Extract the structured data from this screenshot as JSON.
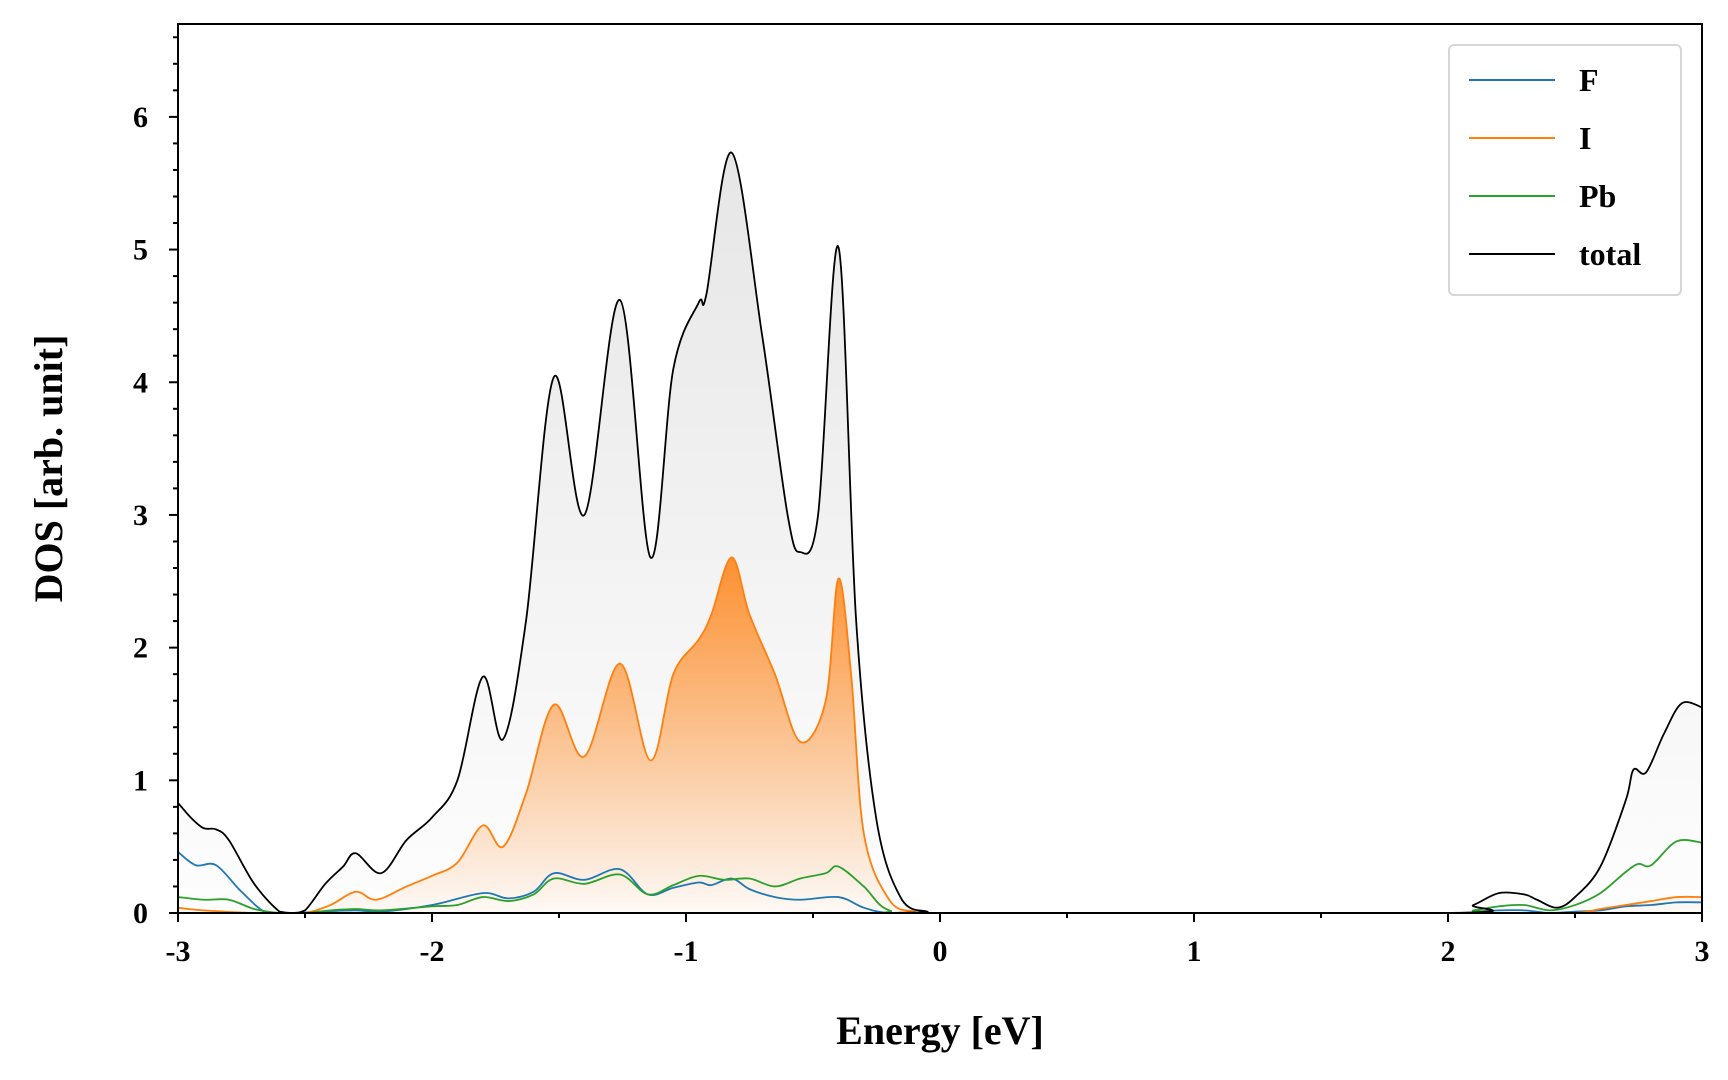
{
  "chart_data": {
    "type": "line",
    "xlabel": "Energy [eV]",
    "ylabel": "DOS [arb. unit]",
    "xlim": [
      -3,
      3
    ],
    "ylim": [
      0,
      6.7
    ],
    "xticks": [
      -3,
      -2,
      -1,
      0,
      1,
      2,
      3
    ],
    "xtick_labels": [
      "-3",
      "-2",
      "-1",
      "0",
      "1",
      "2",
      "3"
    ],
    "yticks": [
      0,
      1,
      2,
      3,
      4,
      5,
      6
    ],
    "ytick_labels": [
      "0",
      "1",
      "2",
      "3",
      "4",
      "5",
      "6"
    ],
    "grid": false,
    "legend_position": "top-right",
    "series": [
      {
        "name": "F",
        "color": "#1f77b4",
        "filled": false,
        "x": [
          -3.0,
          -2.93,
          -2.85,
          -2.75,
          -2.65,
          -2.55,
          -2.45,
          -2.3,
          -2.2,
          -2.0,
          -1.8,
          -1.7,
          -1.6,
          -1.52,
          -1.4,
          -1.26,
          -1.15,
          -1.05,
          -0.95,
          -0.9,
          -0.82,
          -0.75,
          -0.65,
          -0.55,
          -0.4,
          -0.3,
          -0.2,
          0.0,
          2.0,
          2.1,
          2.2,
          2.3,
          2.4,
          2.5,
          2.6,
          2.7,
          2.8,
          2.9,
          3.0
        ],
        "y": [
          0.46,
          0.36,
          0.36,
          0.16,
          0.0,
          0.0,
          0.01,
          0.02,
          0.01,
          0.06,
          0.15,
          0.11,
          0.16,
          0.3,
          0.25,
          0.33,
          0.14,
          0.19,
          0.23,
          0.21,
          0.26,
          0.18,
          0.12,
          0.1,
          0.12,
          0.04,
          0.0,
          0.0,
          0.0,
          0.01,
          0.02,
          0.02,
          0.0,
          0.01,
          0.02,
          0.05,
          0.06,
          0.08,
          0.08
        ]
      },
      {
        "name": "I",
        "color": "#ff7f0e",
        "filled": true,
        "x": [
          -3.0,
          -2.9,
          -2.7,
          -2.6,
          -2.5,
          -2.4,
          -2.3,
          -2.22,
          -2.1,
          -2.0,
          -1.9,
          -1.8,
          -1.72,
          -1.63,
          -1.52,
          -1.4,
          -1.26,
          -1.14,
          -1.05,
          -0.95,
          -0.9,
          -0.82,
          -0.75,
          -0.65,
          -0.55,
          -0.45,
          -0.4,
          -0.35,
          -0.3,
          -0.2,
          -0.1,
          0.0,
          2.0,
          2.3,
          2.5,
          2.6,
          2.7,
          2.8,
          2.9,
          3.0
        ],
        "y": [
          0.04,
          0.02,
          0.0,
          0.0,
          0.0,
          0.06,
          0.16,
          0.1,
          0.2,
          0.28,
          0.38,
          0.66,
          0.5,
          0.9,
          1.57,
          1.18,
          1.88,
          1.15,
          1.8,
          2.06,
          2.25,
          2.68,
          2.25,
          1.8,
          1.29,
          1.6,
          2.52,
          1.8,
          0.6,
          0.1,
          0.01,
          0.0,
          0.0,
          0.0,
          0.0,
          0.03,
          0.06,
          0.09,
          0.12,
          0.12
        ]
      },
      {
        "name": "Pb",
        "color": "#2ca02c",
        "filled": false,
        "x": [
          -3.0,
          -2.9,
          -2.8,
          -2.7,
          -2.6,
          -2.5,
          -2.4,
          -2.3,
          -2.2,
          -2.0,
          -1.9,
          -1.8,
          -1.7,
          -1.6,
          -1.52,
          -1.4,
          -1.26,
          -1.15,
          -1.05,
          -0.95,
          -0.85,
          -0.75,
          -0.65,
          -0.55,
          -0.45,
          -0.4,
          -0.3,
          -0.2,
          0.0,
          2.0,
          2.1,
          2.2,
          2.3,
          2.4,
          2.5,
          2.6,
          2.7,
          2.75,
          2.8,
          2.9,
          3.0
        ],
        "y": [
          0.12,
          0.1,
          0.1,
          0.03,
          0.0,
          0.0,
          0.02,
          0.03,
          0.02,
          0.05,
          0.06,
          0.12,
          0.09,
          0.14,
          0.26,
          0.22,
          0.29,
          0.14,
          0.21,
          0.28,
          0.25,
          0.26,
          0.2,
          0.26,
          0.3,
          0.35,
          0.2,
          0.02,
          0.0,
          0.0,
          0.02,
          0.05,
          0.06,
          0.02,
          0.06,
          0.15,
          0.31,
          0.37,
          0.36,
          0.54,
          0.53
        ]
      },
      {
        "name": "total",
        "color": "#000000",
        "filled": true,
        "x": [
          -3.0,
          -2.95,
          -2.9,
          -2.85,
          -2.8,
          -2.7,
          -2.6,
          -2.55,
          -2.5,
          -2.42,
          -2.35,
          -2.3,
          -2.2,
          -2.1,
          -2.0,
          -1.9,
          -1.8,
          -1.72,
          -1.63,
          -1.52,
          -1.4,
          -1.26,
          -1.14,
          -1.05,
          -0.95,
          -0.92,
          -0.82,
          -0.7,
          -0.6,
          -0.55,
          -0.48,
          -0.4,
          -0.33,
          -0.25,
          -0.15,
          -0.05,
          0.0,
          2.0,
          2.1,
          2.2,
          2.3,
          2.35,
          2.43,
          2.5,
          2.6,
          2.7,
          2.73,
          2.78,
          2.85,
          2.92,
          3.0
        ],
        "y": [
          0.83,
          0.72,
          0.64,
          0.63,
          0.55,
          0.22,
          0.01,
          0.0,
          0.02,
          0.22,
          0.35,
          0.45,
          0.3,
          0.55,
          0.72,
          1.0,
          1.78,
          1.31,
          2.2,
          4.04,
          3.0,
          4.62,
          2.68,
          4.1,
          4.6,
          4.66,
          5.73,
          4.35,
          3.0,
          2.72,
          3.0,
          5.02,
          2.2,
          0.7,
          0.1,
          0.01,
          0.0,
          0.0,
          0.06,
          0.15,
          0.14,
          0.1,
          0.04,
          0.12,
          0.35,
          0.85,
          1.08,
          1.06,
          1.35,
          1.58,
          1.55
        ]
      }
    ]
  }
}
